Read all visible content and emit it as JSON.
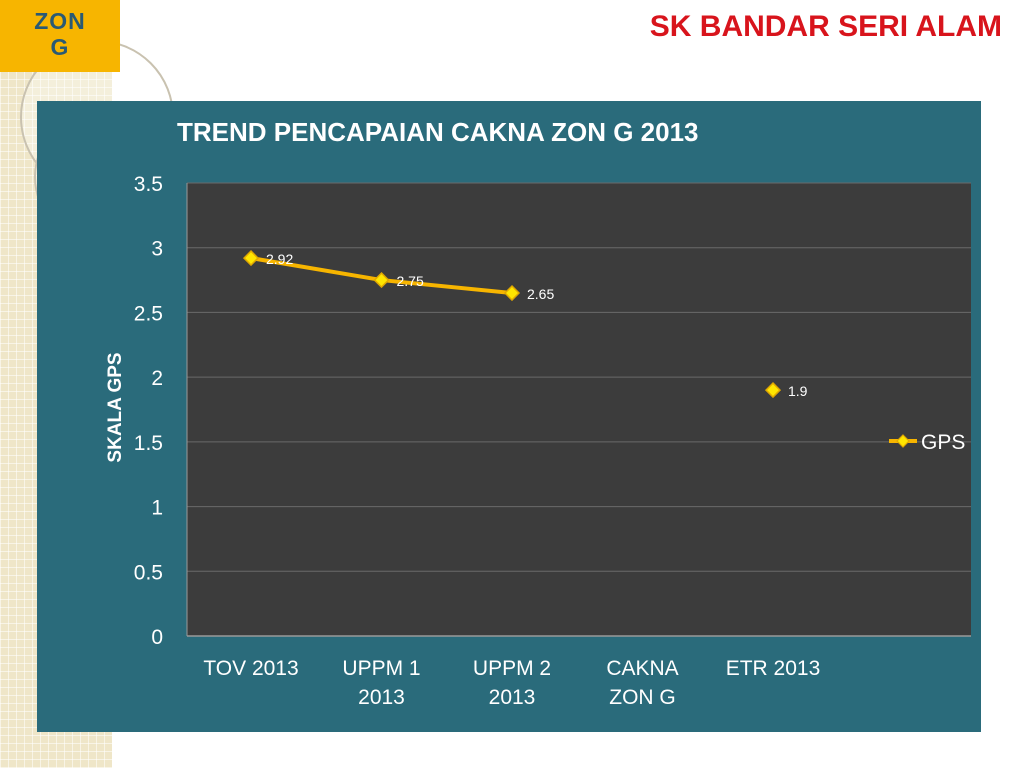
{
  "header": {
    "zone_label": "ZON G",
    "school_name": "SK BANDAR SERI ALAM"
  },
  "colors": {
    "panel": "#2a6b7b",
    "plot_area": "#3c3c3c",
    "series_line": "#f7b500",
    "marker": "#ffe600",
    "zone_badge": "#f7b500",
    "school_title": "#d8141c"
  },
  "chart_data": {
    "type": "line",
    "title": "TREND  PENCAPAIAN CAKNA ZON G 2013",
    "ylabel": "SKALA GPS",
    "xlabel": "",
    "categories": [
      [
        "TOV 2013"
      ],
      [
        "UPPM 1",
        "2013"
      ],
      [
        "UPPM 2",
        "2013"
      ],
      [
        "CAKNA",
        "ZON G"
      ],
      [
        "ETR 2013"
      ]
    ],
    "ylim": [
      0,
      3.5
    ],
    "yticks": [
      "0",
      "0.5",
      "1",
      "1.5",
      "2",
      "2.5",
      "3",
      "3.5"
    ],
    "grid": true,
    "legend_position": "right",
    "series": [
      {
        "name": "GPS",
        "values": [
          2.92,
          2.75,
          2.65,
          null,
          1.9
        ],
        "data_labels": [
          "2.92",
          "2.75",
          "2.65",
          "",
          "1.9"
        ]
      }
    ]
  }
}
